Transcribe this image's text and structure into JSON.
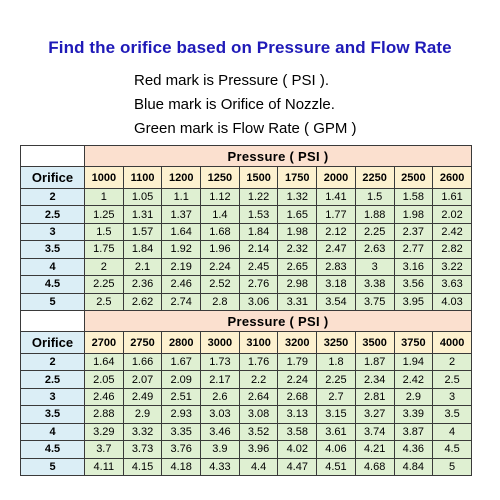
{
  "title": "Find the orifice based on Pressure and Flow Rate",
  "legend": [
    "Red mark is Pressure ( PSI ).",
    "Blue mark is Orifice of Nozzle.",
    "Green mark is Flow Rate ( GPM )"
  ],
  "table": {
    "orifice_header": "Orifice",
    "pressure_header": "Pressure ( PSI )",
    "orifices": [
      "2",
      "2.5",
      "3",
      "3.5",
      "4",
      "4.5",
      "5"
    ],
    "sections": [
      {
        "pressures": [
          "1000",
          "1100",
          "1200",
          "1250",
          "1500",
          "1750",
          "2000",
          "2250",
          "2500",
          "2600"
        ],
        "rows": [
          [
            "1",
            "1.05",
            "1.1",
            "1.12",
            "1.22",
            "1.32",
            "1.41",
            "1.5",
            "1.58",
            "1.61"
          ],
          [
            "1.25",
            "1.31",
            "1.37",
            "1.4",
            "1.53",
            "1.65",
            "1.77",
            "1.88",
            "1.98",
            "2.02"
          ],
          [
            "1.5",
            "1.57",
            "1.64",
            "1.68",
            "1.84",
            "1.98",
            "2.12",
            "2.25",
            "2.37",
            "2.42"
          ],
          [
            "1.75",
            "1.84",
            "1.92",
            "1.96",
            "2.14",
            "2.32",
            "2.47",
            "2.63",
            "2.77",
            "2.82"
          ],
          [
            "2",
            "2.1",
            "2.19",
            "2.24",
            "2.45",
            "2.65",
            "2.83",
            "3",
            "3.16",
            "3.22"
          ],
          [
            "2.25",
            "2.36",
            "2.46",
            "2.52",
            "2.76",
            "2.98",
            "3.18",
            "3.38",
            "3.56",
            "3.63"
          ],
          [
            "2.5",
            "2.62",
            "2.74",
            "2.8",
            "3.06",
            "3.31",
            "3.54",
            "3.75",
            "3.95",
            "4.03"
          ]
        ]
      },
      {
        "pressures": [
          "2700",
          "2750",
          "2800",
          "3000",
          "3100",
          "3200",
          "3250",
          "3500",
          "3750",
          "4000"
        ],
        "rows": [
          [
            "1.64",
            "1.66",
            "1.67",
            "1.73",
            "1.76",
            "1.79",
            "1.8",
            "1.87",
            "1.94",
            "2"
          ],
          [
            "2.05",
            "2.07",
            "2.09",
            "2.17",
            "2.2",
            "2.24",
            "2.25",
            "2.34",
            "2.42",
            "2.5"
          ],
          [
            "2.46",
            "2.49",
            "2.51",
            "2.6",
            "2.64",
            "2.68",
            "2.7",
            "2.81",
            "2.9",
            "3"
          ],
          [
            "2.88",
            "2.9",
            "2.93",
            "3.03",
            "3.08",
            "3.13",
            "3.15",
            "3.27",
            "3.39",
            "3.5"
          ],
          [
            "3.29",
            "3.32",
            "3.35",
            "3.46",
            "3.52",
            "3.58",
            "3.61",
            "3.74",
            "3.87",
            "4"
          ],
          [
            "3.7",
            "3.73",
            "3.76",
            "3.9",
            "3.96",
            "4.02",
            "4.06",
            "4.21",
            "4.36",
            "4.5"
          ],
          [
            "4.11",
            "4.15",
            "4.18",
            "4.33",
            "4.4",
            "4.47",
            "4.51",
            "4.68",
            "4.84",
            "5"
          ]
        ]
      }
    ]
  },
  "colors": {
    "title": "#1f1ab8",
    "pressure_band": "#fbe0cf",
    "pressure_cells": "#fdf1cf",
    "orifice_cells": "#dbeef6",
    "flow_cells": "#dff0d2"
  }
}
